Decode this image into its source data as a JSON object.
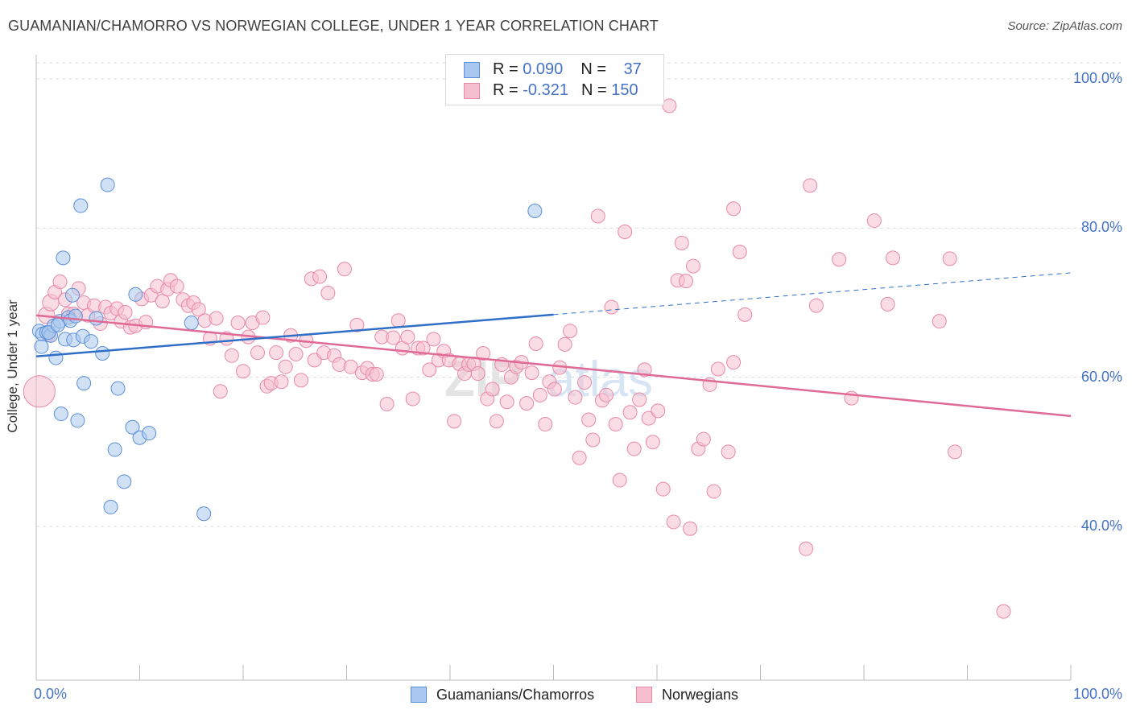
{
  "header": {
    "title": "GUAMANIAN/CHAMORRO VS NORWEGIAN COLLEGE, UNDER 1 YEAR CORRELATION CHART",
    "source": "Source: ZipAtlas.com"
  },
  "legend": {
    "rows": [
      {
        "r_label": "R = ",
        "r_value": "0.090",
        "n_label": "N = ",
        "n_value": "37"
      },
      {
        "r_label": "R = ",
        "r_value": "-0.321",
        "n_label": "N = ",
        "n_value": "150"
      }
    ]
  },
  "bottom_legend": {
    "series_a": "Guamanians/Chamorros",
    "series_b": "Norwegians"
  },
  "colors": {
    "blue_fill": "#aac8ef",
    "blue_stroke": "#5b8fd6",
    "blue_line": "#2f6fc8",
    "pink_fill": "#f6bfd0",
    "pink_stroke": "#e889a8",
    "pink_line": "#e06a96",
    "tick_label": "#4472c4"
  },
  "watermark": {
    "bold": "ZIP",
    "light": "atlas"
  },
  "chart_data": {
    "type": "scatter",
    "title": "GUAMANIAN/CHAMORRO VS NORWEGIAN COLLEGE, UNDER 1 YEAR CORRELATION CHART",
    "xlabel": "",
    "ylabel": "College, Under 1 year",
    "xlim": [
      0,
      100
    ],
    "ylim": [
      20,
      100
    ],
    "x_tick_labels": [
      "0.0%",
      "100.0%"
    ],
    "y_tick_labels": [
      "40.0%",
      "60.0%",
      "80.0%",
      "100.0%"
    ],
    "y_ticks": [
      40,
      60,
      80,
      100
    ],
    "series": [
      {
        "name": "Guamanians/Chamorros",
        "R": 0.09,
        "N": 37,
        "trend": {
          "x0": 0,
          "y0": 62.8,
          "x1": 50,
          "y1": 68.4,
          "dashed_to_x": 100,
          "dashed_to_y": 74.0
        },
        "points": [
          [
            0.3,
            66.2,
            1
          ],
          [
            0.5,
            64.1,
            1
          ],
          [
            0.6,
            65.8,
            1
          ],
          [
            1.0,
            66.0,
            1
          ],
          [
            1.4,
            65.6,
            1
          ],
          [
            1.7,
            66.9,
            1
          ],
          [
            1.9,
            62.6,
            1
          ],
          [
            2.3,
            67.5,
            1
          ],
          [
            2.4,
            55.1,
            1
          ],
          [
            2.6,
            76.0,
            1
          ],
          [
            2.8,
            65.1,
            1
          ],
          [
            3.1,
            68.0,
            1
          ],
          [
            3.3,
            67.6,
            1
          ],
          [
            3.5,
            71.0,
            1
          ],
          [
            3.6,
            65.0,
            1
          ],
          [
            3.8,
            68.2,
            1
          ],
          [
            4.0,
            54.2,
            1
          ],
          [
            4.3,
            83.0,
            1
          ],
          [
            4.5,
            65.5,
            1
          ],
          [
            4.6,
            59.2,
            1
          ],
          [
            5.3,
            64.8,
            1
          ],
          [
            5.8,
            67.9,
            1
          ],
          [
            6.4,
            63.2,
            1
          ],
          [
            6.9,
            85.8,
            1
          ],
          [
            7.2,
            42.6,
            1
          ],
          [
            7.6,
            50.3,
            1
          ],
          [
            7.9,
            58.5,
            1
          ],
          [
            8.5,
            46.0,
            1
          ],
          [
            9.3,
            53.3,
            1
          ],
          [
            9.6,
            71.1,
            1
          ],
          [
            10.0,
            51.9,
            1
          ],
          [
            10.9,
            52.5,
            1
          ],
          [
            15.0,
            67.3,
            1
          ],
          [
            16.2,
            41.7,
            1
          ],
          [
            48.2,
            82.3,
            1
          ],
          [
            1.2,
            66.0,
            1
          ],
          [
            2.1,
            67.0,
            1
          ]
        ]
      },
      {
        "name": "Norwegians",
        "R": -0.321,
        "N": 150,
        "trend": {
          "x0": 0,
          "y0": 68.3,
          "x1": 100,
          "y1": 54.8
        },
        "points": [
          [
            0.3,
            58.1,
            2.3
          ],
          [
            1.0,
            68.3,
            1.2
          ],
          [
            1.2,
            65.7,
            1
          ],
          [
            1.4,
            70.0,
            1.2
          ],
          [
            1.8,
            71.4,
            1
          ],
          [
            2.3,
            72.8,
            1
          ],
          [
            2.8,
            70.4,
            1
          ],
          [
            3.1,
            68.5,
            1
          ],
          [
            3.6,
            68.5,
            1
          ],
          [
            4.1,
            71.9,
            1
          ],
          [
            4.6,
            70.0,
            1
          ],
          [
            5.0,
            68.3,
            1
          ],
          [
            5.6,
            69.6,
            1
          ],
          [
            6.2,
            67.2,
            1
          ],
          [
            6.7,
            69.4,
            1
          ],
          [
            7.2,
            68.6,
            1
          ],
          [
            7.8,
            69.2,
            1
          ],
          [
            8.2,
            67.5,
            1
          ],
          [
            8.6,
            68.7,
            1
          ],
          [
            9.1,
            66.7,
            1
          ],
          [
            9.6,
            66.9,
            1
          ],
          [
            10.2,
            70.5,
            1
          ],
          [
            10.6,
            67.4,
            1
          ],
          [
            11.1,
            71.0,
            1
          ],
          [
            11.7,
            72.2,
            1
          ],
          [
            12.2,
            70.2,
            1
          ],
          [
            12.7,
            71.8,
            1
          ],
          [
            13.0,
            73.0,
            1
          ],
          [
            13.6,
            72.2,
            1
          ],
          [
            14.2,
            70.4,
            1
          ],
          [
            14.7,
            69.6,
            1
          ],
          [
            15.2,
            70.0,
            1
          ],
          [
            15.7,
            69.1,
            1
          ],
          [
            16.3,
            67.6,
            1
          ],
          [
            16.8,
            65.2,
            1
          ],
          [
            17.4,
            67.9,
            1
          ],
          [
            17.8,
            58.1,
            1
          ],
          [
            18.4,
            65.2,
            1
          ],
          [
            18.9,
            62.9,
            1
          ],
          [
            19.5,
            67.3,
            1
          ],
          [
            20.0,
            60.8,
            1
          ],
          [
            20.5,
            65.4,
            1
          ],
          [
            20.9,
            67.3,
            1
          ],
          [
            21.4,
            63.3,
            1
          ],
          [
            21.9,
            68.0,
            1
          ],
          [
            22.3,
            58.8,
            1
          ],
          [
            22.7,
            59.2,
            1
          ],
          [
            23.2,
            63.3,
            1
          ],
          [
            23.7,
            59.4,
            1
          ],
          [
            24.1,
            61.4,
            1
          ],
          [
            24.6,
            65.6,
            1
          ],
          [
            25.1,
            63.1,
            1
          ],
          [
            25.6,
            59.6,
            1
          ],
          [
            26.1,
            64.9,
            1
          ],
          [
            26.6,
            73.2,
            1
          ],
          [
            26.9,
            62.3,
            1
          ],
          [
            27.4,
            73.5,
            1
          ],
          [
            27.8,
            63.3,
            1
          ],
          [
            28.2,
            71.3,
            1
          ],
          [
            28.8,
            62.9,
            1
          ],
          [
            29.3,
            61.7,
            1
          ],
          [
            29.8,
            74.5,
            1
          ],
          [
            30.4,
            61.4,
            1
          ],
          [
            31.0,
            67.0,
            1
          ],
          [
            31.5,
            60.6,
            1
          ],
          [
            32.0,
            61.2,
            1
          ],
          [
            32.5,
            60.4,
            1
          ],
          [
            32.9,
            60.4,
            1
          ],
          [
            33.4,
            65.4,
            1
          ],
          [
            33.9,
            56.4,
            1
          ],
          [
            34.5,
            65.3,
            1
          ],
          [
            35.0,
            67.6,
            1
          ],
          [
            35.4,
            63.9,
            1
          ],
          [
            35.9,
            65.4,
            1
          ],
          [
            36.4,
            57.1,
            1
          ],
          [
            36.9,
            63.9,
            1
          ],
          [
            37.4,
            63.9,
            1
          ],
          [
            38.0,
            61.0,
            1
          ],
          [
            38.4,
            65.1,
            1
          ],
          [
            38.9,
            62.3,
            1
          ],
          [
            39.4,
            63.5,
            1
          ],
          [
            39.9,
            62.3,
            1
          ],
          [
            40.4,
            54.1,
            1
          ],
          [
            40.9,
            61.8,
            1
          ],
          [
            41.4,
            60.5,
            1
          ],
          [
            41.8,
            61.7,
            1
          ],
          [
            42.3,
            61.8,
            1
          ],
          [
            42.7,
            60.5,
            1
          ],
          [
            43.2,
            63.2,
            1
          ],
          [
            43.6,
            57.1,
            1
          ],
          [
            44.1,
            58.4,
            1
          ],
          [
            44.5,
            54.1,
            1
          ],
          [
            45.0,
            61.7,
            1
          ],
          [
            45.5,
            56.7,
            1
          ],
          [
            45.9,
            60.0,
            1
          ],
          [
            46.4,
            61.4,
            1
          ],
          [
            46.9,
            62.0,
            1
          ],
          [
            47.4,
            56.5,
            1
          ],
          [
            47.9,
            60.6,
            1
          ],
          [
            48.3,
            64.5,
            1
          ],
          [
            48.7,
            57.6,
            1
          ],
          [
            49.2,
            53.7,
            1
          ],
          [
            49.6,
            59.4,
            1
          ],
          [
            50.1,
            58.4,
            1
          ],
          [
            50.6,
            61.3,
            1
          ],
          [
            51.1,
            64.4,
            1
          ],
          [
            51.6,
            66.2,
            1
          ],
          [
            52.1,
            57.3,
            1
          ],
          [
            52.5,
            49.2,
            1
          ],
          [
            53.0,
            59.3,
            1
          ],
          [
            53.4,
            54.3,
            1
          ],
          [
            53.8,
            51.6,
            1
          ],
          [
            54.3,
            81.6,
            1
          ],
          [
            54.7,
            56.9,
            1
          ],
          [
            55.1,
            57.6,
            1
          ],
          [
            55.6,
            69.4,
            1
          ],
          [
            56.0,
            53.7,
            1
          ],
          [
            56.4,
            46.2,
            1
          ],
          [
            56.9,
            79.5,
            1
          ],
          [
            57.4,
            55.3,
            1
          ],
          [
            57.8,
            50.4,
            1
          ],
          [
            58.3,
            57.0,
            1
          ],
          [
            58.8,
            61.0,
            1
          ],
          [
            59.2,
            54.5,
            1
          ],
          [
            59.6,
            51.3,
            1
          ],
          [
            60.1,
            55.5,
            1
          ],
          [
            60.6,
            45.0,
            1
          ],
          [
            61.2,
            96.4,
            1
          ],
          [
            61.6,
            40.6,
            1
          ],
          [
            62.0,
            73.0,
            1
          ],
          [
            62.4,
            78.0,
            1
          ],
          [
            62.8,
            72.9,
            1
          ],
          [
            63.2,
            39.7,
            1
          ],
          [
            63.5,
            74.9,
            1
          ],
          [
            64.0,
            50.4,
            1
          ],
          [
            64.5,
            51.7,
            1
          ],
          [
            65.1,
            59.0,
            1
          ],
          [
            65.5,
            44.7,
            1
          ],
          [
            65.9,
            61.1,
            1
          ],
          [
            66.9,
            50.0,
            1
          ],
          [
            67.4,
            82.6,
            1
          ],
          [
            67.4,
            62.0,
            1
          ],
          [
            68.0,
            76.8,
            1
          ],
          [
            68.5,
            68.4,
            1
          ],
          [
            74.4,
            37.0,
            1
          ],
          [
            74.8,
            85.7,
            1
          ],
          [
            75.4,
            69.6,
            1
          ],
          [
            77.6,
            75.8,
            1
          ],
          [
            78.8,
            57.2,
            1
          ],
          [
            81.0,
            81.0,
            1
          ],
          [
            82.3,
            69.8,
            1
          ],
          [
            82.8,
            76.0,
            1
          ],
          [
            88.8,
            50.0,
            1
          ],
          [
            93.5,
            28.6,
            1
          ],
          [
            88.3,
            75.9,
            1
          ],
          [
            87.3,
            67.5,
            1
          ]
        ]
      }
    ]
  }
}
